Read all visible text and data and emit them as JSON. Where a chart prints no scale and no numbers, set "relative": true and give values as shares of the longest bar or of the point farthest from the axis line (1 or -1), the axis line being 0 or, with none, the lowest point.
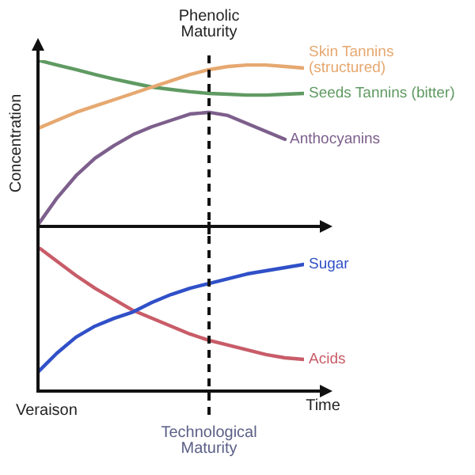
{
  "chart_data": [
    {
      "type": "line",
      "relative": true,
      "tick_labels": false,
      "marker": "none",
      "ylabel": "Concentration",
      "categories": [
        null,
        null,
        null,
        null,
        null,
        null,
        null,
        null,
        null,
        null,
        null,
        null,
        null,
        null,
        null
      ],
      "series": [
        {
          "name": "Skin Tannins\n(structured)",
          "color": "#e6a870",
          "values": [
            0.59,
            0.638,
            0.686,
            0.724,
            0.762,
            0.8,
            0.838,
            0.876,
            0.914,
            0.943,
            0.962,
            0.971,
            0.971,
            0.962,
            0.952
          ]
        },
        {
          "name": "Seeds Tannins (bitter)",
          "color": "#5f9a62",
          "values": [
            1.0,
            0.971,
            0.943,
            0.914,
            0.886,
            0.862,
            0.838,
            0.824,
            0.81,
            0.8,
            0.795,
            0.79,
            0.79,
            0.795,
            0.8
          ]
        },
        {
          "name": "Anthocyanins",
          "color": "#7d5f8c",
          "values": [
            0.01,
            0.171,
            0.305,
            0.41,
            0.486,
            0.552,
            0.6,
            0.638,
            0.676,
            0.686,
            0.667,
            0.619,
            0.571,
            0.524,
            null
          ]
        }
      ],
      "annotations": [
        "Phenolic\nMaturity"
      ]
    },
    {
      "type": "line",
      "relative": true,
      "tick_labels": false,
      "marker": "none",
      "xlabel": "Time",
      "categories": [
        null,
        null,
        null,
        null,
        null,
        null,
        null,
        null,
        null,
        null,
        null,
        null,
        null,
        null,
        null
      ],
      "series": [
        {
          "name": "Sugar",
          "color": "#3050c8",
          "values": [
            0.132,
            0.264,
            0.374,
            0.451,
            0.505,
            0.549,
            0.615,
            0.67,
            0.714,
            0.747,
            0.78,
            0.813,
            0.835,
            0.857,
            0.879
          ]
        },
        {
          "name": "Acids",
          "color": "#c85c68",
          "values": [
            1.0,
            0.901,
            0.802,
            0.714,
            0.637,
            0.56,
            0.505,
            0.451,
            0.396,
            0.352,
            0.319,
            0.286,
            0.253,
            0.231,
            0.22
          ]
        }
      ],
      "annotations": [
        "Technological\nMaturity",
        "Veraison"
      ]
    }
  ]
}
